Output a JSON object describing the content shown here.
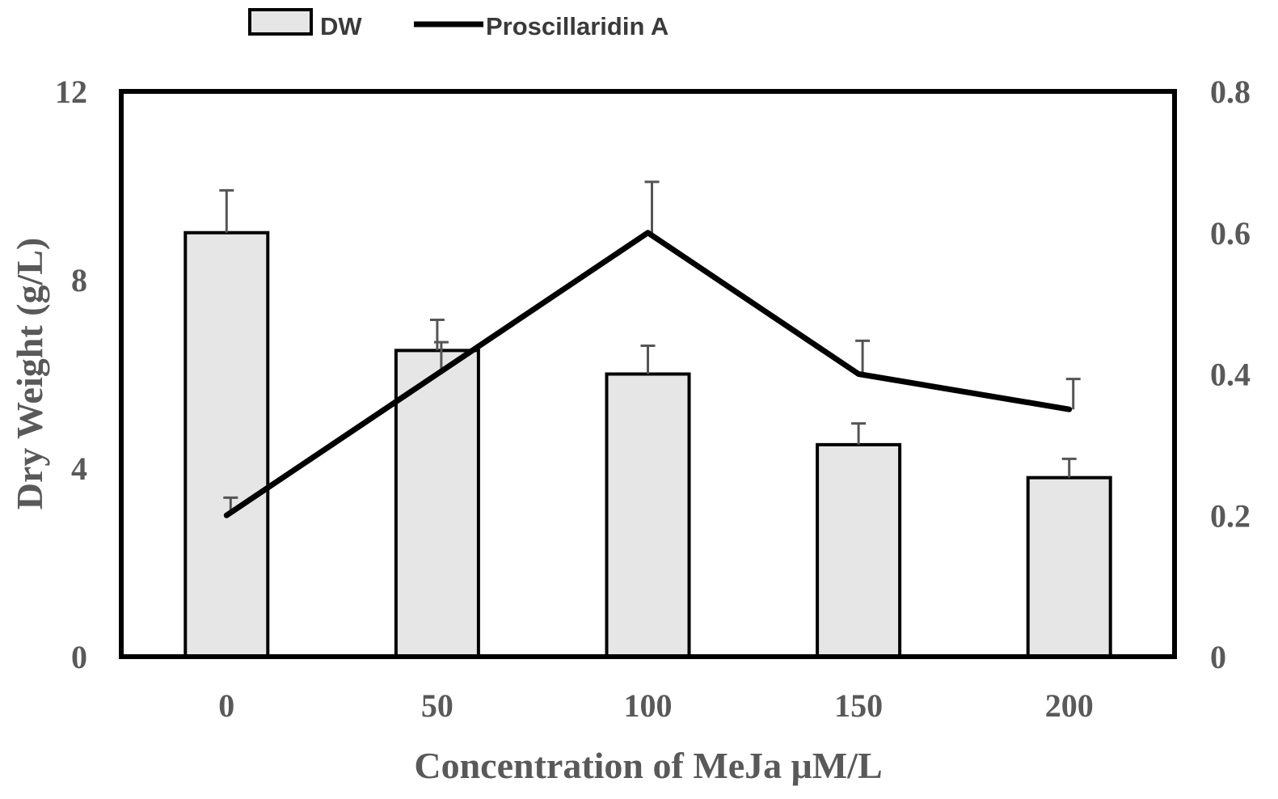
{
  "chart_data": {
    "type": "bar",
    "title": "",
    "xlabel": "Concentration of  MeJa μM/L",
    "ylabel": "Dry Weight (g/L)",
    "y2label": "",
    "categories": [
      "0",
      "50",
      "100",
      "150",
      "200"
    ],
    "ylim": [
      0,
      12
    ],
    "yticks": [
      "0",
      "4",
      "8",
      "12"
    ],
    "y2lim": [
      0,
      0.8
    ],
    "y2ticks": [
      "0",
      "0.2",
      "0.4",
      "0.6",
      "0.8"
    ],
    "legend_position": "top",
    "series": [
      {
        "name": "DW",
        "type": "bar",
        "axis": "left",
        "values": [
          9.0,
          6.5,
          6.0,
          4.5,
          3.8
        ],
        "errors": [
          0.9,
          0.65,
          0.6,
          0.45,
          0.4
        ],
        "color": "#e6e6e6"
      },
      {
        "name": "Proscillaridin A",
        "type": "line",
        "axis": "right",
        "values": [
          0.2,
          0.4,
          0.6,
          0.4,
          0.35
        ],
        "errors": [
          0.025,
          0.045,
          0.072,
          0.047,
          0.043
        ],
        "color": "#000000"
      }
    ]
  }
}
